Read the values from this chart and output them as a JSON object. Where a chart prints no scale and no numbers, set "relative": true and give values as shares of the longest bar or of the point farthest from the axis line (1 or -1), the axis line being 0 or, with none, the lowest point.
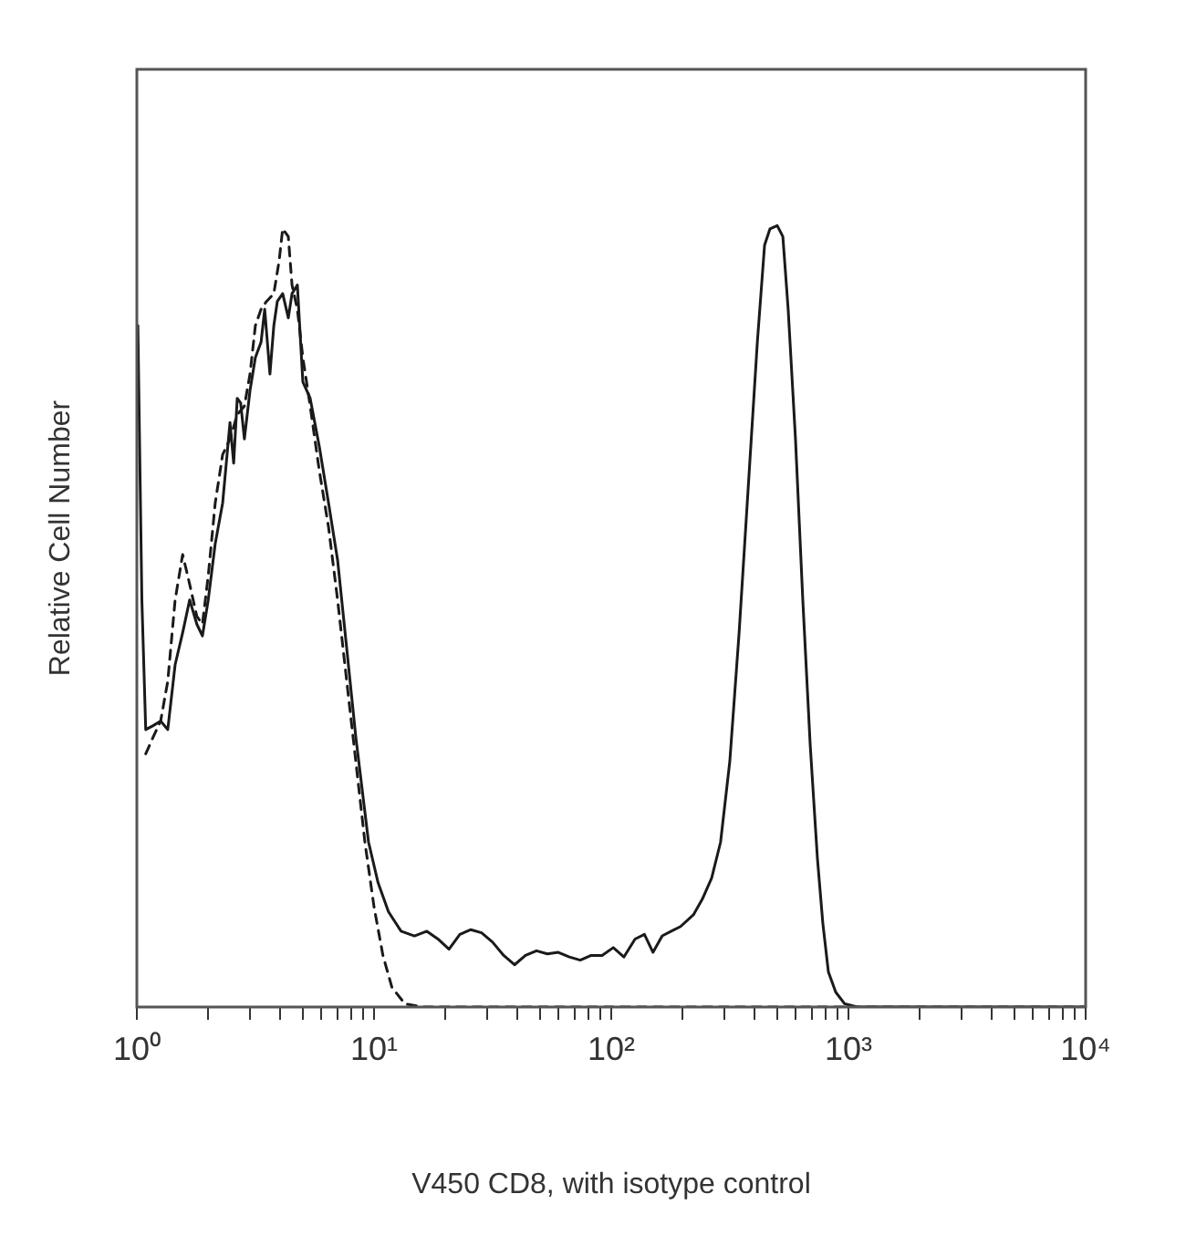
{
  "chart_data": {
    "type": "line",
    "relative": true,
    "xlabel": "V450 CD8, with isotype control",
    "ylabel": "Relative Cell Number",
    "log": "x",
    "grid": false,
    "legend": false,
    "marker": "none",
    "xlim": [
      1,
      10000
    ],
    "xticks": [
      {
        "value": 1,
        "label": "10⁰"
      },
      {
        "value": 2,
        "label": null
      },
      {
        "value": 3,
        "label": null
      },
      {
        "value": 4,
        "label": null
      },
      {
        "value": 5,
        "label": null
      },
      {
        "value": 6,
        "label": null
      },
      {
        "value": 7,
        "label": null
      },
      {
        "value": 8,
        "label": null
      },
      {
        "value": 9,
        "label": null
      },
      {
        "value": 10,
        "label": "10¹"
      },
      {
        "value": 20,
        "label": null
      },
      {
        "value": 30,
        "label": null
      },
      {
        "value": 40,
        "label": null
      },
      {
        "value": 50,
        "label": null
      },
      {
        "value": 60,
        "label": null
      },
      {
        "value": 70,
        "label": null
      },
      {
        "value": 80,
        "label": null
      },
      {
        "value": 90,
        "label": null
      },
      {
        "value": 100,
        "label": "10²"
      },
      {
        "value": 200,
        "label": null
      },
      {
        "value": 300,
        "label": null
      },
      {
        "value": 400,
        "label": null
      },
      {
        "value": 500,
        "label": null
      },
      {
        "value": 600,
        "label": null
      },
      {
        "value": 700,
        "label": null
      },
      {
        "value": 800,
        "label": null
      },
      {
        "value": 900,
        "label": null
      },
      {
        "value": 1000,
        "label": "10³"
      },
      {
        "value": 2000,
        "label": null
      },
      {
        "value": 3000,
        "label": null
      },
      {
        "value": 4000,
        "label": null
      },
      {
        "value": 5000,
        "label": null
      },
      {
        "value": 6000,
        "label": null
      },
      {
        "value": 7000,
        "label": null
      },
      {
        "value": 8000,
        "label": null
      },
      {
        "value": 9000,
        "label": null
      },
      {
        "value": 10000,
        "label": "10⁴"
      }
    ],
    "series": [
      {
        "color": "#1a1a1a",
        "line_style": "solid",
        "x": [
          1.01,
          1.05,
          1.09,
          1.17,
          1.26,
          1.35,
          1.45,
          1.56,
          1.67,
          1.79,
          1.89,
          2.0,
          2.14,
          2.3,
          2.47,
          2.56,
          2.65,
          2.74,
          2.84,
          3.0,
          3.16,
          3.34,
          3.46,
          3.64,
          3.78,
          3.91,
          4.12,
          4.35,
          4.51,
          4.75,
          5.01,
          5.38,
          5.88,
          6.43,
          7.02,
          7.67,
          8.38,
          9.48,
          10.4,
          11.5,
          13.0,
          14.8,
          16.7,
          18.6,
          20.7,
          23.0,
          25.6,
          28.4,
          31.6,
          35.2,
          39.1,
          43.5,
          48.4,
          53.8,
          59.8,
          66.6,
          74.0,
          82.3,
          91.5,
          102,
          113,
          126,
          138,
          150,
          164,
          179,
          196,
          222,
          242,
          265,
          289,
          316,
          346,
          378,
          413,
          443,
          467,
          501,
          529,
          557,
          598,
          642,
          690,
          740,
          780,
          823,
          884,
          965,
          1090,
          10000
        ],
        "values": [
          0.872,
          0.521,
          0.355,
          0.36,
          0.366,
          0.355,
          0.438,
          0.479,
          0.521,
          0.49,
          0.475,
          0.521,
          0.593,
          0.645,
          0.748,
          0.696,
          0.779,
          0.773,
          0.727,
          0.789,
          0.831,
          0.851,
          0.893,
          0.81,
          0.872,
          0.903,
          0.913,
          0.882,
          0.913,
          0.924,
          0.8,
          0.779,
          0.717,
          0.645,
          0.572,
          0.459,
          0.345,
          0.211,
          0.159,
          0.122,
          0.097,
          0.091,
          0.097,
          0.087,
          0.074,
          0.093,
          0.099,
          0.095,
          0.083,
          0.066,
          0.054,
          0.066,
          0.072,
          0.068,
          0.07,
          0.064,
          0.06,
          0.066,
          0.066,
          0.076,
          0.064,
          0.087,
          0.093,
          0.07,
          0.091,
          0.097,
          0.103,
          0.118,
          0.138,
          0.165,
          0.211,
          0.314,
          0.479,
          0.665,
          0.851,
          0.975,
          0.996,
          1.0,
          0.986,
          0.893,
          0.727,
          0.521,
          0.335,
          0.19,
          0.107,
          0.045,
          0.019,
          0.004,
          0,
          0
        ]
      },
      {
        "color": "#1a1a1a",
        "line_style": "dashed",
        "x": [
          1.09,
          1.17,
          1.26,
          1.35,
          1.45,
          1.56,
          1.67,
          1.79,
          1.89,
          2.0,
          2.14,
          2.3,
          2.47,
          2.65,
          2.84,
          3.0,
          3.16,
          3.34,
          3.52,
          3.78,
          3.98,
          4.12,
          4.35,
          4.51,
          4.75,
          5.01,
          5.38,
          5.88,
          6.43,
          7.02,
          7.67,
          8.38,
          9.15,
          10.0,
          10.9,
          11.9,
          13.5,
          16.1,
          10000
        ],
        "values": [
          0.324,
          0.345,
          0.366,
          0.417,
          0.521,
          0.579,
          0.541,
          0.5,
          0.49,
          0.552,
          0.645,
          0.707,
          0.727,
          0.758,
          0.769,
          0.81,
          0.872,
          0.893,
          0.903,
          0.913,
          0.955,
          0.996,
          0.986,
          0.924,
          0.893,
          0.831,
          0.769,
          0.686,
          0.614,
          0.521,
          0.417,
          0.314,
          0.211,
          0.128,
          0.066,
          0.025,
          0.004,
          0,
          0
        ]
      }
    ]
  }
}
